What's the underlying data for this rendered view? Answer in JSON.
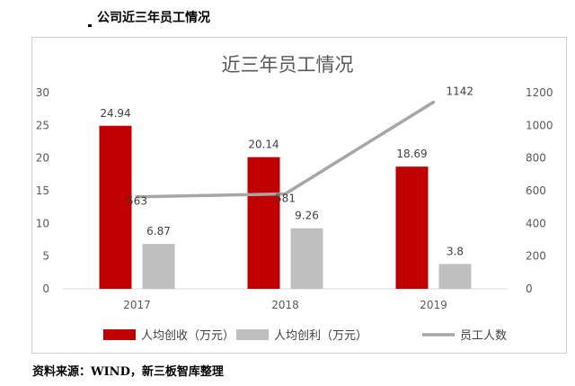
{
  "caption": "公司近三年员工情况",
  "source": "资料来源：WIND，新三板智库整理",
  "chart_data": {
    "type": "bar",
    "title": "近三年员工情况",
    "categories": [
      "2017",
      "2018",
      "2019"
    ],
    "series": [
      {
        "name": "人均创收（万元）",
        "type": "bar",
        "axis": "left",
        "color": "#c00000",
        "values": [
          24.94,
          20.14,
          18.69
        ]
      },
      {
        "name": "人均创利（万元）",
        "type": "bar",
        "axis": "left",
        "color": "#bfbfbf",
        "values": [
          6.87,
          9.26,
          3.8
        ]
      },
      {
        "name": "员工人数",
        "type": "line",
        "axis": "right",
        "color": "#a6a6a6",
        "values": [
          563,
          581,
          1142
        ]
      }
    ],
    "y_left": {
      "min": 0,
      "max": 30,
      "ticks": [
        "0",
        "5",
        "10",
        "15",
        "20",
        "25",
        "30"
      ]
    },
    "y_right": {
      "min": 0,
      "max": 1200,
      "ticks": [
        "0",
        "200",
        "400",
        "600",
        "800",
        "1000",
        "1200"
      ]
    },
    "grid": false,
    "legend_position": "bottom"
  }
}
